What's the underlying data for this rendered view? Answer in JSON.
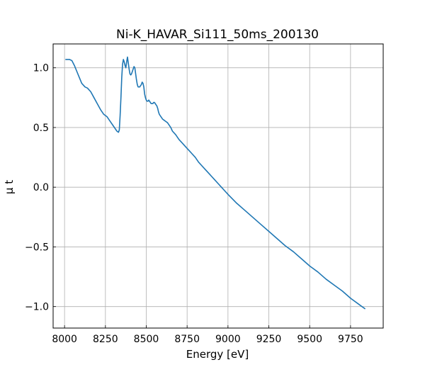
{
  "chart_data": {
    "type": "line",
    "title": "Ni-K_HAVAR_Si111_50ms_200130",
    "xlabel": "Energy [eV]",
    "ylabel": "μ t",
    "xlim": [
      7930,
      9950
    ],
    "ylim": [
      -1.18,
      1.2
    ],
    "grid": true,
    "xticks": [
      8000,
      8250,
      8500,
      8750,
      9000,
      9250,
      9500,
      9750
    ],
    "xtick_labels": [
      "8000",
      "8250",
      "8500",
      "8750",
      "9000",
      "9250",
      "9500",
      "9750"
    ],
    "yticks": [
      1.0,
      0.5,
      0.0,
      -0.5,
      -1.0
    ],
    "ytick_labels": [
      "1.0",
      "0.5",
      "0.0",
      "−0.5",
      "−1.0"
    ],
    "series": [
      {
        "color": "#1f77b4",
        "x": [
          8005,
          8030,
          8045,
          8060,
          8075,
          8090,
          8105,
          8125,
          8140,
          8160,
          8180,
          8200,
          8220,
          8240,
          8260,
          8280,
          8300,
          8320,
          8330,
          8335,
          8340,
          8345,
          8350,
          8355,
          8360,
          8365,
          8370,
          8375,
          8380,
          8385,
          8390,
          8395,
          8400,
          8405,
          8410,
          8415,
          8420,
          8425,
          8430,
          8435,
          8440,
          8445,
          8450,
          8455,
          8460,
          8465,
          8470,
          8475,
          8480,
          8485,
          8490,
          8495,
          8500,
          8505,
          8510,
          8515,
          8520,
          8525,
          8530,
          8535,
          8540,
          8545,
          8550,
          8555,
          8560,
          8565,
          8570,
          8575,
          8580,
          8585,
          8590,
          8595,
          8600,
          8610,
          8620,
          8630,
          8640,
          8650,
          8660,
          8680,
          8700,
          8720,
          8740,
          8760,
          8780,
          8800,
          8820,
          8840,
          8860,
          8880,
          8900,
          8920,
          8940,
          8960,
          8980,
          9000,
          9050,
          9100,
          9150,
          9200,
          9250,
          9300,
          9350,
          9400,
          9450,
          9500,
          9550,
          9600,
          9650,
          9700,
          9750,
          9800,
          9840
        ],
        "y": [
          1.07,
          1.07,
          1.06,
          1.02,
          0.97,
          0.92,
          0.87,
          0.84,
          0.83,
          0.8,
          0.75,
          0.7,
          0.65,
          0.61,
          0.59,
          0.55,
          0.51,
          0.47,
          0.46,
          0.48,
          0.6,
          0.75,
          0.92,
          1.03,
          1.07,
          1.05,
          1.02,
          1.0,
          1.05,
          1.09,
          1.04,
          0.99,
          0.95,
          0.94,
          0.95,
          0.97,
          0.99,
          1.01,
          1.0,
          0.95,
          0.9,
          0.86,
          0.84,
          0.84,
          0.84,
          0.85,
          0.86,
          0.88,
          0.87,
          0.84,
          0.78,
          0.75,
          0.73,
          0.72,
          0.72,
          0.73,
          0.72,
          0.71,
          0.7,
          0.7,
          0.7,
          0.71,
          0.71,
          0.7,
          0.69,
          0.68,
          0.66,
          0.63,
          0.61,
          0.6,
          0.59,
          0.58,
          0.57,
          0.56,
          0.55,
          0.54,
          0.52,
          0.5,
          0.47,
          0.44,
          0.4,
          0.37,
          0.34,
          0.31,
          0.28,
          0.25,
          0.21,
          0.18,
          0.15,
          0.12,
          0.09,
          0.06,
          0.03,
          0.0,
          -0.03,
          -0.06,
          -0.13,
          -0.19,
          -0.25,
          -0.31,
          -0.37,
          -0.43,
          -0.49,
          -0.54,
          -0.6,
          -0.66,
          -0.71,
          -0.77,
          -0.82,
          -0.87,
          -0.93,
          -0.98,
          -1.02
        ]
      }
    ]
  }
}
